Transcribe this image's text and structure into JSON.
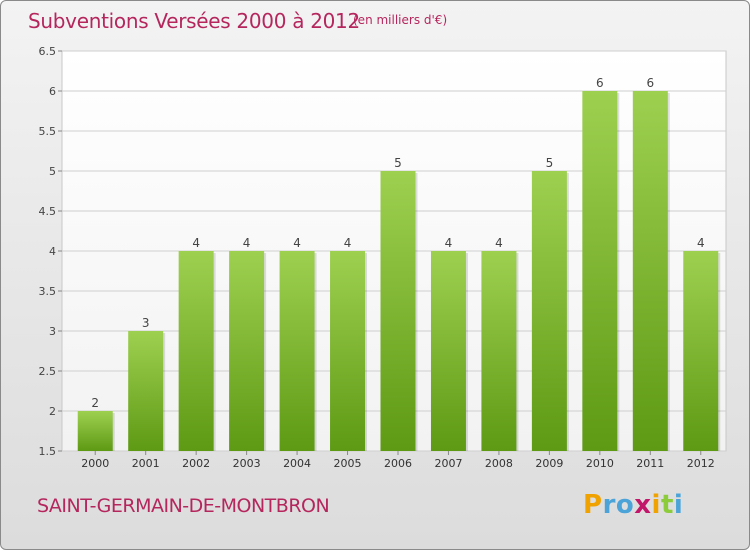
{
  "header": {
    "title": "Subventions Versées 2000 à 2012",
    "subtitle": "(en milliers d'€)"
  },
  "footer": {
    "commune": "SAINT-GERMAIN-DE-MONTBRON",
    "logo_letters": [
      "P",
      "r",
      "o",
      "x",
      "i",
      "t",
      "i"
    ]
  },
  "colors": {
    "accent": "#b5265d",
    "bar_top": "#9ed050",
    "bar_bottom": "#5e9a14",
    "grid": "#cfcfcf"
  },
  "chart_data": {
    "type": "bar",
    "categories": [
      "2000",
      "2001",
      "2002",
      "2003",
      "2004",
      "2005",
      "2006",
      "2007",
      "2008",
      "2009",
      "2010",
      "2011",
      "2012"
    ],
    "values": [
      2,
      3,
      4,
      4,
      4,
      4,
      5,
      4,
      4,
      5,
      6,
      6,
      4
    ],
    "data_labels": [
      "2",
      "3",
      "4",
      "4",
      "4",
      "4",
      "5",
      "4",
      "4",
      "5",
      "6",
      "6",
      "4"
    ],
    "ylim": [
      1.5,
      6.5
    ],
    "yticks": [
      1.5,
      2,
      2.5,
      3,
      3.5,
      4,
      4.5,
      5,
      5.5,
      6,
      6.5
    ],
    "ytick_labels": [
      "1.5",
      "2",
      "2.5",
      "3",
      "3.5",
      "4",
      "4.5",
      "5",
      "5.5",
      "6",
      "6.5"
    ],
    "grid": true,
    "legend": "none"
  }
}
